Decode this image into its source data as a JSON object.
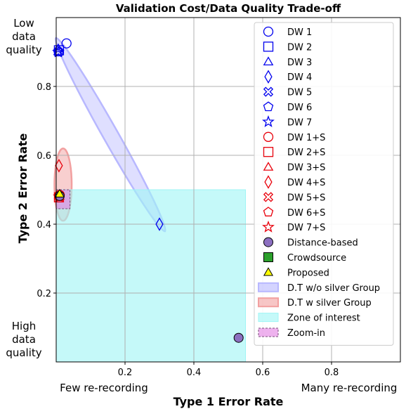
{
  "chart_data": {
    "type": "scatter",
    "title": "Validation Cost/Data Quality Trade-off",
    "xlabel": "Type 1 Error Rate",
    "ylabel": "Type 2 Error Rate",
    "xlim": [
      0.0,
      1.0
    ],
    "ylim": [
      0.0,
      1.0
    ],
    "grid": true,
    "legend_position": "right",
    "x_ticks": [
      {
        "value": 0.2,
        "label": "0.2"
      },
      {
        "value": 0.4,
        "label": "0.4"
      },
      {
        "value": 0.6,
        "label": "0.6"
      },
      {
        "value": 0.8,
        "label": "0.8"
      }
    ],
    "y_ticks": [
      {
        "value": 0.2,
        "label": "0.2"
      },
      {
        "value": 0.4,
        "label": "0.4"
      },
      {
        "value": 0.6,
        "label": "0.6"
      },
      {
        "value": 0.8,
        "label": "0.8"
      }
    ],
    "corner_labels": {
      "top_left": [
        "Low",
        "data",
        "quality"
      ],
      "bottom_left": [
        "High",
        "data",
        "quality"
      ],
      "x_left": "Few re-recording",
      "x_right": "Many re-recording"
    },
    "colors": {
      "dw": "#0000ee",
      "dw_s": "#e8000b",
      "distance": "#8c6fc0",
      "crowdsource": "#2ca02c",
      "proposed": "#ffff00",
      "zone": "#9ef5f5",
      "zoom": "#e27ee2",
      "group_without_silver": "#b8b8ff",
      "group_with_silver": "#f2a0a0"
    },
    "series": [
      {
        "name": "DW 1",
        "marker": "circle",
        "group": "dw",
        "points": [
          [
            0.03,
            0.925
          ]
        ]
      },
      {
        "name": "DW 2",
        "marker": "square",
        "group": "dw",
        "points": [
          [
            0.008,
            0.905
          ]
        ]
      },
      {
        "name": "DW 3",
        "marker": "triangle",
        "group": "dw",
        "points": [
          [
            0.006,
            0.91
          ]
        ]
      },
      {
        "name": "DW 4",
        "marker": "diamond",
        "group": "dw",
        "points": [
          [
            0.3,
            0.4
          ]
        ]
      },
      {
        "name": "DW 5",
        "marker": "x",
        "group": "dw",
        "points": [
          [
            0.006,
            0.9
          ]
        ]
      },
      {
        "name": "DW 6",
        "marker": "pentagon",
        "group": "dw",
        "points": [
          [
            0.008,
            0.9
          ]
        ]
      },
      {
        "name": "DW 7",
        "marker": "star",
        "group": "dw",
        "points": [
          [
            0.006,
            0.9
          ]
        ]
      },
      {
        "name": "DW 1+S",
        "marker": "circle",
        "group": "dw_s",
        "points": [
          [
            0.01,
            0.485
          ]
        ]
      },
      {
        "name": "DW 2+S",
        "marker": "square",
        "group": "dw_s",
        "points": [
          [
            0.008,
            0.478
          ]
        ]
      },
      {
        "name": "DW 3+S",
        "marker": "triangle",
        "group": "dw_s",
        "points": [
          [
            0.008,
            0.485
          ]
        ]
      },
      {
        "name": "DW 4+S",
        "marker": "diamond",
        "group": "dw_s",
        "points": [
          [
            0.008,
            0.57
          ]
        ]
      },
      {
        "name": "DW 5+S",
        "marker": "x",
        "group": "dw_s",
        "points": [
          [
            0.01,
            0.48
          ]
        ]
      },
      {
        "name": "DW 6+S",
        "marker": "pentagon",
        "group": "dw_s",
        "points": [
          [
            0.008,
            0.48
          ]
        ]
      },
      {
        "name": "DW 7+S",
        "marker": "star",
        "group": "dw_s",
        "points": [
          [
            0.008,
            0.48
          ]
        ]
      },
      {
        "name": "Distance-based",
        "marker": "circle-filled",
        "group": "distance",
        "points": [
          [
            0.53,
            0.07
          ],
          [
            0.01,
            0.482
          ]
        ]
      },
      {
        "name": "Crowdsource",
        "marker": "square-filled",
        "group": "crowdsource",
        "points": []
      },
      {
        "name": "Proposed",
        "marker": "triangle-filled",
        "group": "proposed",
        "points": [
          [
            0.01,
            0.488
          ]
        ]
      }
    ],
    "regions": [
      {
        "name": "D.T w/o silver Group",
        "shape": "ellipse",
        "group": "group_without_silver",
        "from": [
          0.005,
          0.93
        ],
        "to": [
          0.31,
          0.39
        ],
        "half_width": 0.022
      },
      {
        "name": "D.T w silver Group",
        "shape": "ellipse",
        "group": "group_with_silver",
        "center": [
          0.02,
          0.515
        ],
        "rx": 0.025,
        "ry": 0.105
      },
      {
        "name": "Zone of interest",
        "shape": "rect",
        "group": "zone",
        "x": [
          0.0,
          0.55
        ],
        "y": [
          0.0,
          0.5
        ]
      },
      {
        "name": "Zoom-in",
        "shape": "rect",
        "group": "zoom",
        "x": [
          0.0,
          0.04
        ],
        "y": [
          0.445,
          0.5
        ]
      }
    ],
    "legend": [
      {
        "label": "DW 1",
        "marker": "circle",
        "group": "dw"
      },
      {
        "label": "DW 2",
        "marker": "square",
        "group": "dw"
      },
      {
        "label": "DW 3",
        "marker": "triangle",
        "group": "dw"
      },
      {
        "label": "DW 4",
        "marker": "diamond",
        "group": "dw"
      },
      {
        "label": "DW 5",
        "marker": "x",
        "group": "dw"
      },
      {
        "label": "DW 6",
        "marker": "pentagon",
        "group": "dw"
      },
      {
        "label": "DW 7",
        "marker": "star",
        "group": "dw"
      },
      {
        "label": "DW 1+S",
        "marker": "circle",
        "group": "dw_s"
      },
      {
        "label": "DW 2+S",
        "marker": "square",
        "group": "dw_s"
      },
      {
        "label": "DW 3+S",
        "marker": "triangle",
        "group": "dw_s"
      },
      {
        "label": "DW 4+S",
        "marker": "diamond",
        "group": "dw_s"
      },
      {
        "label": "DW 5+S",
        "marker": "x",
        "group": "dw_s"
      },
      {
        "label": "DW 6+S",
        "marker": "pentagon",
        "group": "dw_s"
      },
      {
        "label": "DW 7+S",
        "marker": "star",
        "group": "dw_s"
      },
      {
        "label": "Distance-based",
        "marker": "circle-filled",
        "group": "distance"
      },
      {
        "label": "Crowdsource",
        "marker": "square-filled",
        "group": "crowdsource"
      },
      {
        "label": "Proposed",
        "marker": "triangle-filled",
        "group": "proposed"
      },
      {
        "label": "D.T w/o silver Group",
        "marker": "patch",
        "group": "group_without_silver"
      },
      {
        "label": "D.T w silver Group",
        "marker": "patch",
        "group": "group_with_silver"
      },
      {
        "label": "Zone of interest",
        "marker": "patch",
        "group": "zone"
      },
      {
        "label": "Zoom-in",
        "marker": "patch-dashed",
        "group": "zoom"
      }
    ]
  }
}
